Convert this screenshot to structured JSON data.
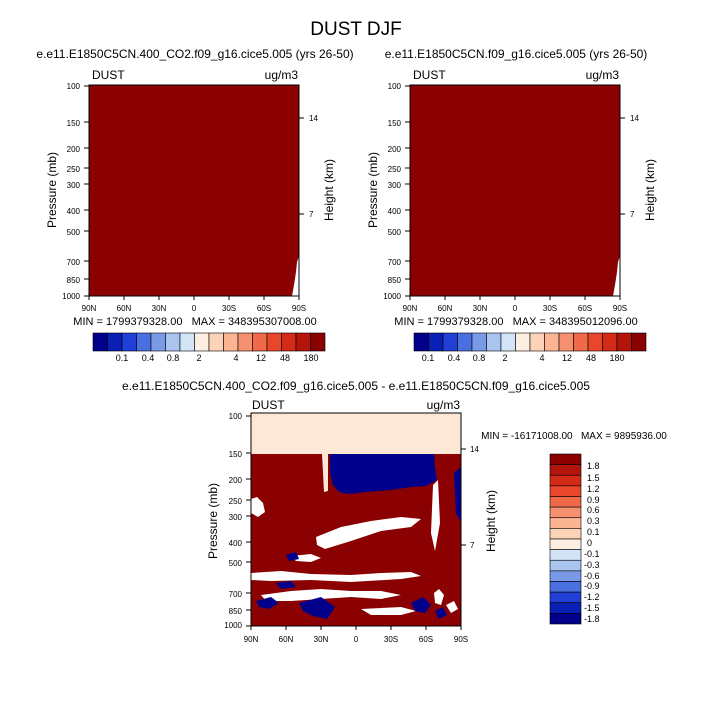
{
  "title": "DUST DJF",
  "colors": {
    "dark_red": "#8b0000",
    "peach": "#fde8d7",
    "navy": "#00008b",
    "white": "#ffffff"
  },
  "chart_data": [
    {
      "type": "heatmap",
      "title": "e.e11.E1850C5CN.400_CO2.f09_g16.cice5.005 (yrs 26-50)",
      "left_label": "DUST",
      "units": "ug/m3",
      "ylabel": "Pressure (mb)",
      "ylabel_right": "Height (km)",
      "x_ticks": [
        "90N",
        "60N",
        "30N",
        "0",
        "30S",
        "60S",
        "90S"
      ],
      "y_ticks": [
        "100",
        "150",
        "200",
        "250",
        "300",
        "400",
        "500",
        "700",
        "850",
        "1000"
      ],
      "y_right_ticks": [
        "14",
        "7"
      ],
      "min_max": "MIN = 1799379328.00   MAX = 348395307008.00",
      "field": "nearly uniform above 180 ug/m3 (dark red), small low region near 90S surface"
    },
    {
      "type": "heatmap",
      "title": "e.e11.E1850C5CN.f09_g16.cice5.005 (yrs 26-50)",
      "left_label": "DUST",
      "units": "ug/m3",
      "ylabel": "Pressure (mb)",
      "ylabel_right": "Height (km)",
      "x_ticks": [
        "90N",
        "60N",
        "30N",
        "0",
        "30S",
        "60S",
        "90S"
      ],
      "y_ticks": [
        "100",
        "150",
        "200",
        "250",
        "300",
        "400",
        "500",
        "700",
        "850",
        "1000"
      ],
      "y_right_ticks": [
        "14",
        "7"
      ],
      "min_max": "MIN = 1799379328.00   MAX = 348395012096.00",
      "field": "nearly uniform above 180 ug/m3 (dark red), small low region near 90S surface"
    },
    {
      "type": "heatmap",
      "title": "e.e11.E1850C5CN.400_CO2.f09_g16.cice5.005 - e.e11.E1850C5CN.f09_g16.cice5.005",
      "left_label": "DUST",
      "units": "ug/m3",
      "ylabel": "Pressure (mb)",
      "ylabel_right": "Height (km)",
      "x_ticks": [
        "90N",
        "60N",
        "30N",
        "0",
        "30S",
        "60S",
        "90S"
      ],
      "y_ticks": [
        "100",
        "150",
        "200",
        "250",
        "300",
        "400",
        "500",
        "700",
        "850",
        "1000"
      ],
      "y_right_ticks": [
        "14",
        "7"
      ],
      "min_max": "MIN = -16171008.00   MAX = 9895936.00",
      "field": "mostly positive (>1.8) below 150 mb with white bands; negative (<-1.8) patch 200-150 mb near 30N-30S; peach (0 to 0.1) above 150 mb"
    }
  ],
  "colorbar_top": {
    "labels": [
      "0.1",
      "0.4",
      "0.8",
      "2",
      "4",
      "12",
      "48",
      "180"
    ],
    "colors": [
      "#00008b",
      "#0a1fb4",
      "#1f3fd6",
      "#4a6fe0",
      "#7a9ae8",
      "#aac4f0",
      "#d4e4f7",
      "#fdeee2",
      "#fdd3b8",
      "#fbb593",
      "#f59070",
      "#f06a4a",
      "#e8472b",
      "#d42a18",
      "#b3140c",
      "#8b0000"
    ]
  },
  "colorbar_diff": {
    "labels": [
      "1.8",
      "1.5",
      "1.2",
      "0.9",
      "0.6",
      "0.3",
      "0.1",
      "0",
      "-0.1",
      "-0.3",
      "-0.6",
      "-0.9",
      "-1.2",
      "-1.5",
      "-1.8"
    ],
    "colors": [
      "#8b0000",
      "#b3140c",
      "#d42a18",
      "#e8472b",
      "#f06a4a",
      "#f59070",
      "#fbb593",
      "#fdd3b8",
      "#fdeee2",
      "#d4e4f7",
      "#aac4f0",
      "#7a9ae8",
      "#4a6fe0",
      "#1f3fd6",
      "#0a1fb4",
      "#00008b"
    ]
  }
}
